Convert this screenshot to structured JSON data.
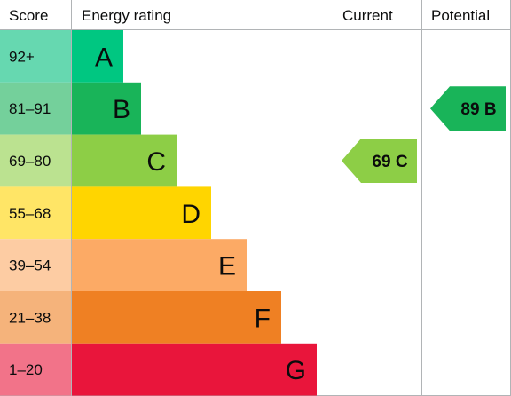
{
  "headers": {
    "score": "Score",
    "energy_rating": "Energy rating",
    "current": "Current",
    "potential": "Potential"
  },
  "chart_data": {
    "type": "bar",
    "categories": [
      "A",
      "B",
      "C",
      "D",
      "E",
      "F",
      "G"
    ],
    "score_ranges": [
      "92+",
      "81-91",
      "69-80",
      "55-68",
      "39-54",
      "21-38",
      "1-20"
    ],
    "bar_colors": [
      "#00c781",
      "#19b459",
      "#8dce46",
      "#ffd500",
      "#fcaa65",
      "#ef8023",
      "#e9153b"
    ],
    "score_colors": [
      "#66d8b0",
      "#74d09b",
      "#bbe290",
      "#ffe566",
      "#fdcca3",
      "#f5b37b",
      "#f27389"
    ],
    "current": {
      "label": "69 C",
      "value": 69,
      "band": "C",
      "color": "#8dce46"
    },
    "potential": {
      "label": "89 B",
      "value": 89,
      "band": "B",
      "color": "#19b459"
    }
  }
}
